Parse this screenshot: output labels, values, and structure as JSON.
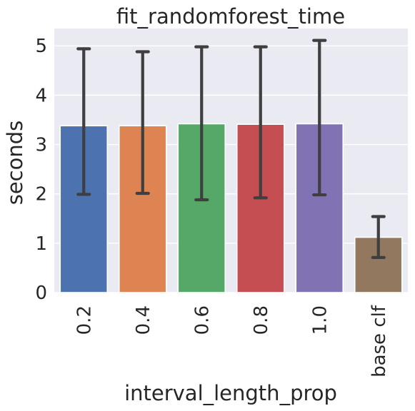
{
  "chart_data": {
    "type": "bar",
    "title": "fit_randomforest_time",
    "xlabel": "interval_length_prop",
    "ylabel": "seconds",
    "categories": [
      "0.2",
      "0.4",
      "0.6",
      "0.8",
      "1.0",
      "base clf"
    ],
    "values": [
      3.38,
      3.38,
      3.42,
      3.41,
      3.42,
      1.12
    ],
    "error_low": [
      1.99,
      2.01,
      1.88,
      1.92,
      1.98,
      0.71
    ],
    "error_high": [
      4.94,
      4.88,
      4.98,
      4.98,
      5.11,
      1.54
    ],
    "colors": [
      "#4c72b0",
      "#dd8452",
      "#55a868",
      "#c44e52",
      "#8172b3",
      "#937860"
    ],
    "ylim": [
      0,
      5.35
    ],
    "yticks": [
      "0",
      "1",
      "2",
      "3",
      "4",
      "5"
    ],
    "grid": true,
    "legend": "none"
  }
}
